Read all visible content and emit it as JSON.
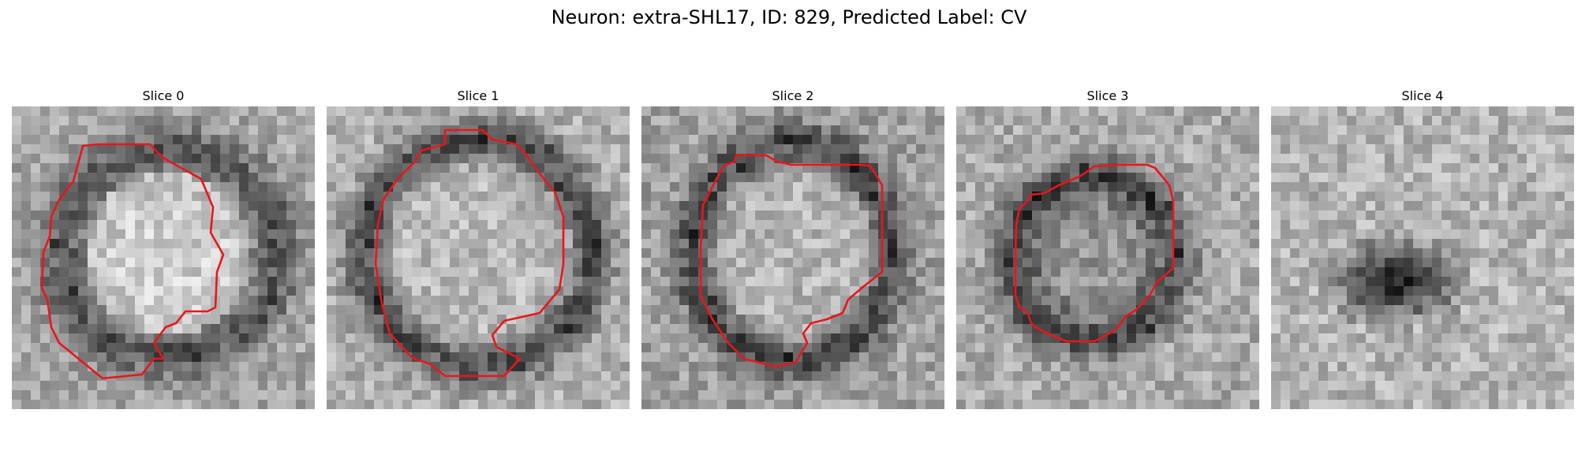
{
  "figure": {
    "title": "Neuron: extra-SHL17, ID: 829, Predicted Label: CV"
  },
  "panels": [
    {
      "title": "Slice 0",
      "contour_color": "#e8161c",
      "has_contour": true
    },
    {
      "title": "Slice 1",
      "contour_color": "#e8161c",
      "has_contour": true
    },
    {
      "title": "Slice 2",
      "contour_color": "#e8161c",
      "has_contour": true
    },
    {
      "title": "Slice 3",
      "contour_color": "#e8161c",
      "has_contour": true
    },
    {
      "title": "Slice 4",
      "has_contour": false
    }
  ]
}
